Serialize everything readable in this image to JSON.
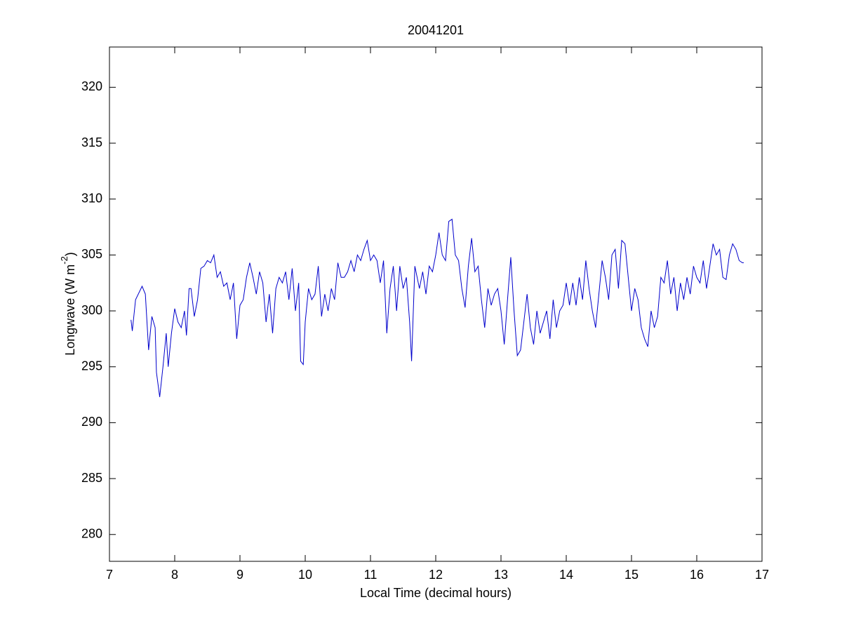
{
  "chart_data": {
    "type": "line",
    "title": "20041201",
    "xlabel": "Local Time (decimal hours)",
    "ylabel_parts": [
      "Longwave (W m",
      "-2",
      ")"
    ],
    "x": [
      7.33,
      7.35,
      7.4,
      7.5,
      7.55,
      7.6,
      7.65,
      7.7,
      7.72,
      7.77,
      7.82,
      7.87,
      7.9,
      7.95,
      8.0,
      8.05,
      8.1,
      8.15,
      8.18,
      8.22,
      8.25,
      8.3,
      8.35,
      8.4,
      8.45,
      8.5,
      8.55,
      8.6,
      8.65,
      8.7,
      8.75,
      8.8,
      8.85,
      8.9,
      8.95,
      9.0,
      9.05,
      9.1,
      9.15,
      9.2,
      9.25,
      9.3,
      9.35,
      9.4,
      9.45,
      9.5,
      9.55,
      9.6,
      9.65,
      9.7,
      9.75,
      9.8,
      9.85,
      9.9,
      9.93,
      9.97,
      10.0,
      10.05,
      10.1,
      10.15,
      10.2,
      10.25,
      10.3,
      10.35,
      10.4,
      10.45,
      10.5,
      10.55,
      10.6,
      10.65,
      10.7,
      10.75,
      10.8,
      10.85,
      10.9,
      10.95,
      11.0,
      11.05,
      11.1,
      11.15,
      11.2,
      11.25,
      11.3,
      11.35,
      11.4,
      11.45,
      11.5,
      11.55,
      11.6,
      11.63,
      11.68,
      11.75,
      11.8,
      11.85,
      11.9,
      11.95,
      12.0,
      12.05,
      12.1,
      12.15,
      12.2,
      12.25,
      12.3,
      12.35,
      12.4,
      12.45,
      12.5,
      12.55,
      12.6,
      12.65,
      12.7,
      12.75,
      12.8,
      12.85,
      12.9,
      12.95,
      13.0,
      13.05,
      13.1,
      13.15,
      13.2,
      13.25,
      13.3,
      13.35,
      13.4,
      13.45,
      13.5,
      13.55,
      13.6,
      13.65,
      13.7,
      13.75,
      13.8,
      13.85,
      13.9,
      13.95,
      14.0,
      14.05,
      14.1,
      14.15,
      14.2,
      14.25,
      14.3,
      14.35,
      14.4,
      14.45,
      14.5,
      14.55,
      14.6,
      14.65,
      14.7,
      14.75,
      14.8,
      14.85,
      14.9,
      14.95,
      15.0,
      15.05,
      15.1,
      15.15,
      15.2,
      15.25,
      15.3,
      15.35,
      15.4,
      15.45,
      15.5,
      15.55,
      15.6,
      15.65,
      15.7,
      15.75,
      15.8,
      15.85,
      15.9,
      15.95,
      16.0,
      16.05,
      16.1,
      16.15,
      16.2,
      16.25,
      16.3,
      16.35,
      16.4,
      16.45,
      16.5,
      16.55,
      16.6,
      16.65,
      16.7,
      16.72
    ],
    "values": [
      299.2,
      298.2,
      301,
      302.2,
      301.5,
      296.5,
      299.5,
      298.5,
      294.5,
      292.3,
      295,
      298,
      295,
      298,
      300.2,
      299,
      298.5,
      300,
      297.8,
      302,
      302,
      299.5,
      301,
      303.8,
      304,
      304.5,
      304.3,
      305,
      303,
      303.5,
      302.2,
      302.5,
      301,
      302.5,
      297.5,
      300.5,
      301,
      303,
      304.3,
      303,
      301.5,
      303.5,
      302.5,
      299,
      301.5,
      298,
      302,
      303,
      302.5,
      303.5,
      301,
      303.8,
      300,
      302.5,
      295.5,
      295.2,
      299,
      302,
      301,
      301.5,
      304,
      299.5,
      301.5,
      300,
      302,
      301,
      304.3,
      303,
      303,
      303.5,
      304.5,
      303.5,
      305,
      304.5,
      305.5,
      306.3,
      304.5,
      305,
      304.5,
      302.5,
      304.5,
      298,
      302,
      304,
      300,
      304,
      302,
      303,
      299,
      295.5,
      304,
      302,
      303.5,
      301.5,
      304,
      303.5,
      305,
      307,
      305,
      304.5,
      308,
      308.2,
      305,
      304.5,
      302,
      300.3,
      304,
      306.5,
      303.5,
      304,
      301,
      298.5,
      302,
      300.5,
      301.5,
      302,
      300,
      297,
      301,
      304.8,
      300,
      296,
      296.5,
      299,
      301.5,
      298.5,
      297,
      300,
      298,
      299,
      300,
      297.5,
      301,
      298.5,
      300,
      300.5,
      302.5,
      300.5,
      302.5,
      300.5,
      303,
      301,
      304.5,
      302,
      300,
      298.5,
      301.5,
      304.5,
      303,
      301,
      305,
      305.5,
      302,
      306.3,
      306,
      303,
      300,
      302,
      301,
      298.5,
      297.5,
      296.8,
      300,
      298.5,
      299.5,
      303,
      302.5,
      304.5,
      301.5,
      303,
      300,
      302.5,
      301,
      303,
      301.5,
      304,
      303,
      302.5,
      304.5,
      302,
      304,
      306,
      305,
      305.5,
      303,
      302.8,
      305,
      306,
      305.5,
      304.5,
      304.3,
      304.3
    ],
    "color": "#0000cc",
    "xlim": [
      7,
      17
    ],
    "xticks": [
      7,
      8,
      9,
      10,
      11,
      12,
      13,
      14,
      15,
      16,
      17
    ],
    "ylim": [
      277.6,
      323.6
    ],
    "yticks": [
      280,
      285,
      290,
      295,
      300,
      305,
      310,
      315,
      320
    ],
    "grid": false,
    "box": true
  }
}
